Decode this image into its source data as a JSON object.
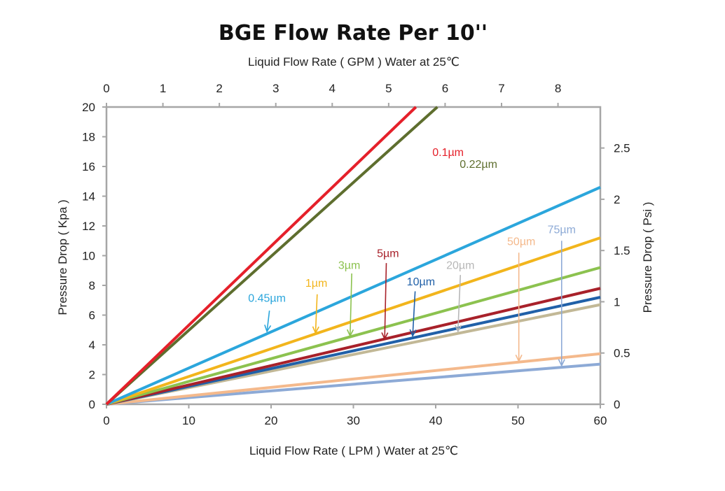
{
  "chart_data": {
    "type": "line",
    "title": "BGE Flow Rate Per 10''",
    "xlabel": "Liquid Flow Rate ( LPM ) Water at 25℃",
    "x2label": "Liquid Flow Rate ( GPM ) Water at 25℃",
    "ylabel": "Pressure Drop ( Kpa )",
    "y2label": "Pressure Drop ( Psi )",
    "xlim": [
      0,
      60
    ],
    "ylim": [
      0,
      20
    ],
    "x2lim": [
      0,
      8.75
    ],
    "y2lim": [
      0,
      2.9
    ],
    "xticks": [
      "0",
      "10",
      "20",
      "30",
      "40",
      "50",
      "60"
    ],
    "yticks": [
      "0",
      "2",
      "4",
      "6",
      "8",
      "10",
      "12",
      "14",
      "16",
      "18",
      "20"
    ],
    "x2ticks": [
      "0",
      "1",
      "2",
      "3",
      "4",
      "5",
      "6",
      "7",
      "8"
    ],
    "y2ticks": [
      "0",
      "0.5",
      "1",
      "1.5",
      "2",
      "2.5"
    ],
    "grid": false,
    "legend": "inline labels",
    "series": [
      {
        "name": "0.1µm",
        "color": "#e5202a",
        "x": [
          0,
          37.6
        ],
        "y": [
          0,
          20
        ],
        "label_at": [
          41.5,
          16.7
        ],
        "label_color": "#e5202a"
      },
      {
        "name": "0.22µm",
        "color": "#5e6e2e",
        "x": [
          0,
          40.2
        ],
        "y": [
          0,
          20
        ],
        "label_at": [
          45.2,
          15.9
        ],
        "label_color": "#5e6e2e"
      },
      {
        "name": "0.45µm",
        "color": "#2ba6dc",
        "x": [
          0,
          60
        ],
        "y": [
          0,
          14.6
        ],
        "label_at": [
          19.5,
          6.9
        ],
        "label_color": "#2ba6dc",
        "arrow_from": [
          19.8,
          6.3
        ],
        "arrow_to": [
          19.5,
          4.9
        ]
      },
      {
        "name": "1µm",
        "color": "#f2b51c",
        "x": [
          0,
          60
        ],
        "y": [
          0,
          11.2
        ],
        "label_at": [
          25.5,
          7.9
        ],
        "label_color": "#f2b51c",
        "arrow_from": [
          25.6,
          7.4
        ],
        "arrow_to": [
          25.4,
          4.8
        ]
      },
      {
        "name": "3µm",
        "color": "#8cc24f",
        "x": [
          0,
          60
        ],
        "y": [
          0,
          9.2
        ],
        "label_at": [
          29.5,
          9.1
        ],
        "label_color": "#8cc24f",
        "arrow_from": [
          29.8,
          8.8
        ],
        "arrow_to": [
          29.6,
          4.6
        ]
      },
      {
        "name": "5µm",
        "color": "#a8212a",
        "x": [
          0,
          60
        ],
        "y": [
          0,
          7.8
        ],
        "label_at": [
          34.2,
          9.9
        ],
        "label_color": "#a8212a",
        "arrow_from": [
          34.0,
          9.5
        ],
        "arrow_to": [
          33.8,
          4.4
        ]
      },
      {
        "name": "10µm",
        "color": "#2060a8",
        "x": [
          0,
          60
        ],
        "y": [
          0,
          7.2
        ],
        "label_at": [
          38.2,
          8.0
        ],
        "label_color": "#2060a8",
        "arrow_from": [
          37.5,
          7.6
        ],
        "arrow_to": [
          37.2,
          4.6
        ]
      },
      {
        "name": "20µm",
        "color": "#c2b896",
        "x": [
          0,
          60
        ],
        "y": [
          0,
          6.7
        ],
        "label_at": [
          43.0,
          9.1
        ],
        "label_color": "#b7b7b7",
        "arrow_from": [
          43.0,
          8.7
        ],
        "arrow_to": [
          42.7,
          4.9
        ]
      },
      {
        "name": "50µm",
        "color": "#f4b98c",
        "x": [
          0,
          60
        ],
        "y": [
          0,
          3.4
        ],
        "label_at": [
          50.4,
          10.7
        ],
        "label_color": "#f4b98c",
        "arrow_from": [
          50.1,
          10.2
        ],
        "arrow_to": [
          50.1,
          2.9
        ]
      },
      {
        "name": "75µm",
        "color": "#8daad6",
        "x": [
          0,
          60
        ],
        "y": [
          0,
          2.7
        ],
        "label_at": [
          55.3,
          11.5
        ],
        "label_color": "#8daad6",
        "arrow_from": [
          55.3,
          11.0
        ],
        "arrow_to": [
          55.3,
          2.6
        ]
      }
    ]
  }
}
